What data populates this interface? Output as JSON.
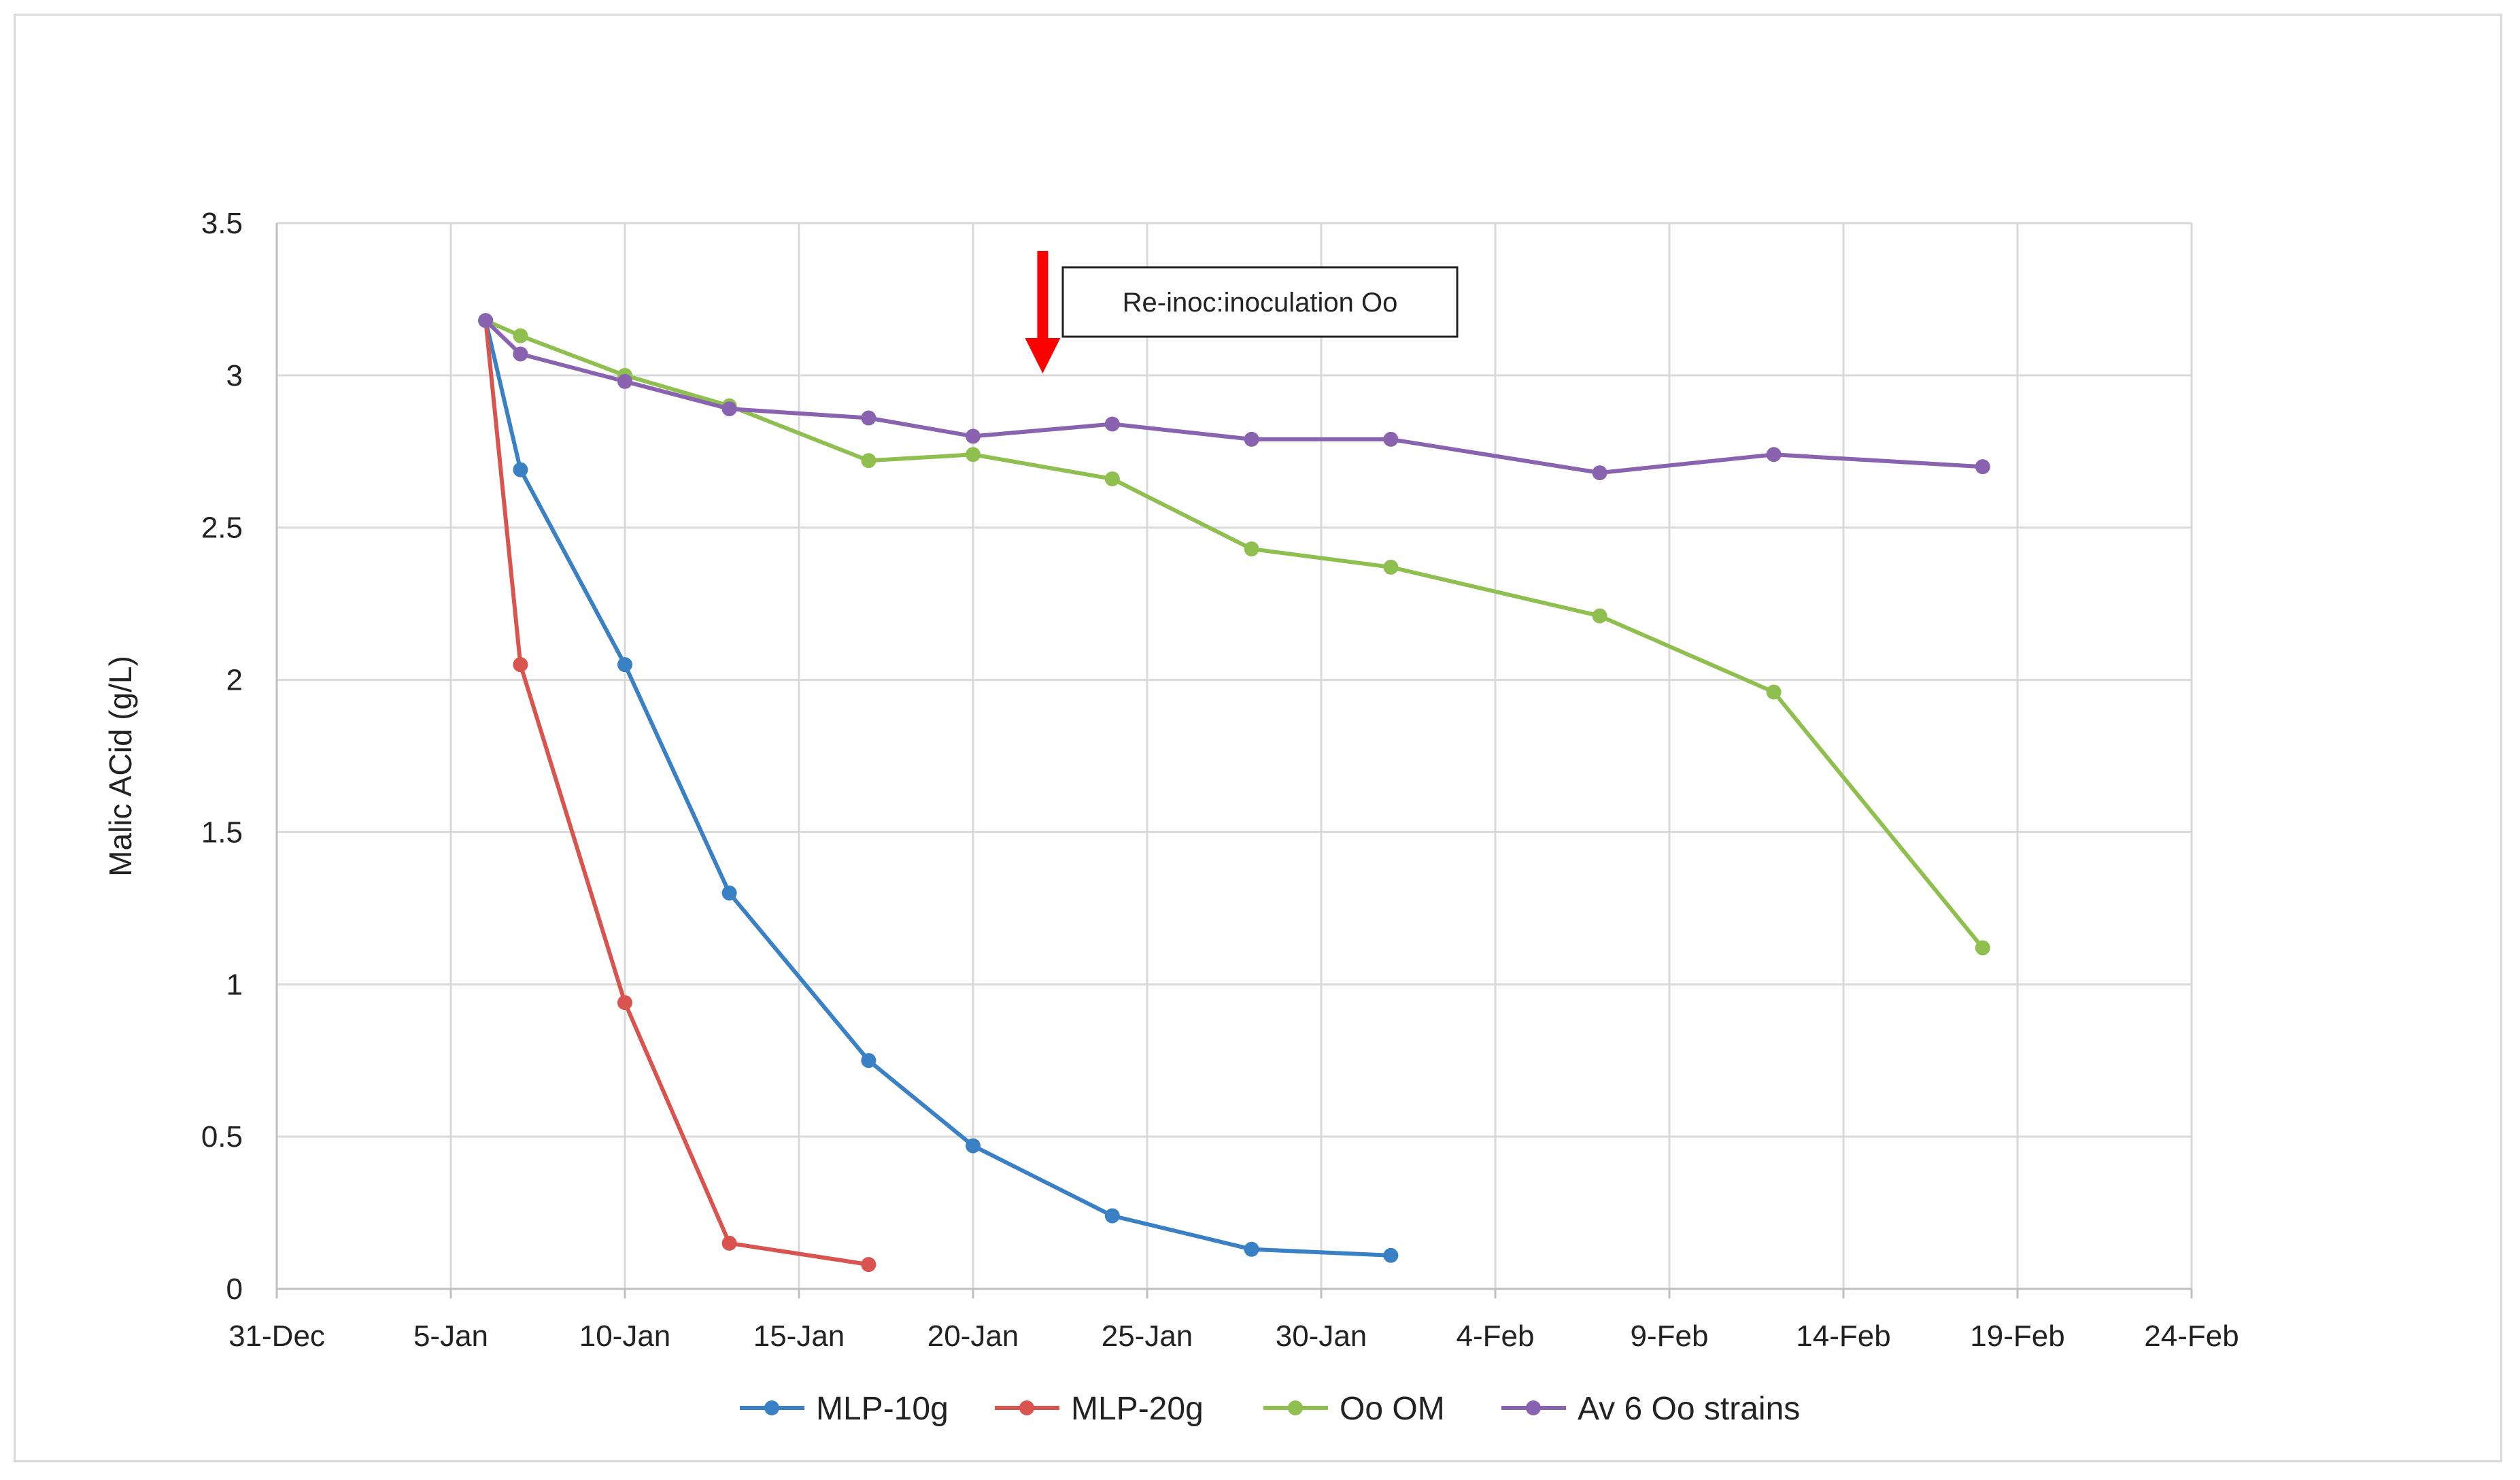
{
  "chart_data": {
    "type": "line",
    "title": "",
    "xlabel": "",
    "ylabel": "Malic ACid (g/L)",
    "ylim": [
      0,
      3.5
    ],
    "yticks": [
      0,
      0.5,
      1,
      1.5,
      2,
      2.5,
      3,
      3.5
    ],
    "ytick_labels": [
      "0",
      "0.5",
      "1",
      "1.5",
      "2",
      "2.5",
      "3",
      "3.5"
    ],
    "xlim": [
      "2018-12-31",
      "2019-02-24"
    ],
    "xticks": [
      "2018-12-31",
      "2019-01-05",
      "2019-01-10",
      "2019-01-15",
      "2019-01-20",
      "2019-01-25",
      "2019-01-30",
      "2019-02-04",
      "2019-02-09",
      "2019-02-14",
      "2019-02-19",
      "2019-02-24"
    ],
    "xtick_labels": [
      "31-Dec",
      "5-Jan",
      "10-Jan",
      "15-Jan",
      "20-Jan",
      "25-Jan",
      "30-Jan",
      "4-Feb",
      "9-Feb",
      "14-Feb",
      "19-Feb",
      "24-Feb"
    ],
    "grid": true,
    "legend_position": "bottom",
    "series": [
      {
        "name": "MLP-10g",
        "color": "#3a80c4",
        "points": [
          {
            "x": "2019-01-06",
            "y": 3.18
          },
          {
            "x": "2019-01-07",
            "y": 2.69
          },
          {
            "x": "2019-01-10",
            "y": 2.05
          },
          {
            "x": "2019-01-13",
            "y": 1.3
          },
          {
            "x": "2019-01-17",
            "y": 0.75
          },
          {
            "x": "2019-01-20",
            "y": 0.47
          },
          {
            "x": "2019-01-24",
            "y": 0.24
          },
          {
            "x": "2019-01-28",
            "y": 0.13
          },
          {
            "x": "2019-02-01",
            "y": 0.11
          }
        ]
      },
      {
        "name": "MLP-20g",
        "color": "#d9534f",
        "points": [
          {
            "x": "2019-01-06",
            "y": 3.18
          },
          {
            "x": "2019-01-07",
            "y": 2.05
          },
          {
            "x": "2019-01-10",
            "y": 0.94
          },
          {
            "x": "2019-01-13",
            "y": 0.15
          },
          {
            "x": "2019-01-17",
            "y": 0.08
          }
        ]
      },
      {
        "name": "Oo OM",
        "color": "#8fbf4f",
        "points": [
          {
            "x": "2019-01-06",
            "y": 3.18
          },
          {
            "x": "2019-01-07",
            "y": 3.13
          },
          {
            "x": "2019-01-10",
            "y": 3.0
          },
          {
            "x": "2019-01-13",
            "y": 2.9
          },
          {
            "x": "2019-01-17",
            "y": 2.72
          },
          {
            "x": "2019-01-20",
            "y": 2.74
          },
          {
            "x": "2019-01-24",
            "y": 2.66
          },
          {
            "x": "2019-01-28",
            "y": 2.43
          },
          {
            "x": "2019-02-01",
            "y": 2.37
          },
          {
            "x": "2019-02-07",
            "y": 2.21
          },
          {
            "x": "2019-02-12",
            "y": 1.96
          },
          {
            "x": "2019-02-18",
            "y": 1.12
          }
        ]
      },
      {
        "name": "Av 6 Oo strains",
        "color": "#8a63b0",
        "points": [
          {
            "x": "2019-01-06",
            "y": 3.18
          },
          {
            "x": "2019-01-07",
            "y": 3.07
          },
          {
            "x": "2019-01-10",
            "y": 2.98
          },
          {
            "x": "2019-01-13",
            "y": 2.89
          },
          {
            "x": "2019-01-17",
            "y": 2.86
          },
          {
            "x": "2019-01-20",
            "y": 2.8
          },
          {
            "x": "2019-01-24",
            "y": 2.84
          },
          {
            "x": "2019-01-28",
            "y": 2.79
          },
          {
            "x": "2019-02-01",
            "y": 2.79
          },
          {
            "x": "2019-02-07",
            "y": 2.68
          },
          {
            "x": "2019-02-12",
            "y": 2.74
          },
          {
            "x": "2019-02-18",
            "y": 2.7
          }
        ]
      }
    ],
    "annotations": [
      {
        "text": "Re-inoc:inoculation Oo",
        "type": "callout-box",
        "arrow": "down",
        "arrow_color": "#ff0000",
        "x": "2019-01-22"
      }
    ]
  }
}
